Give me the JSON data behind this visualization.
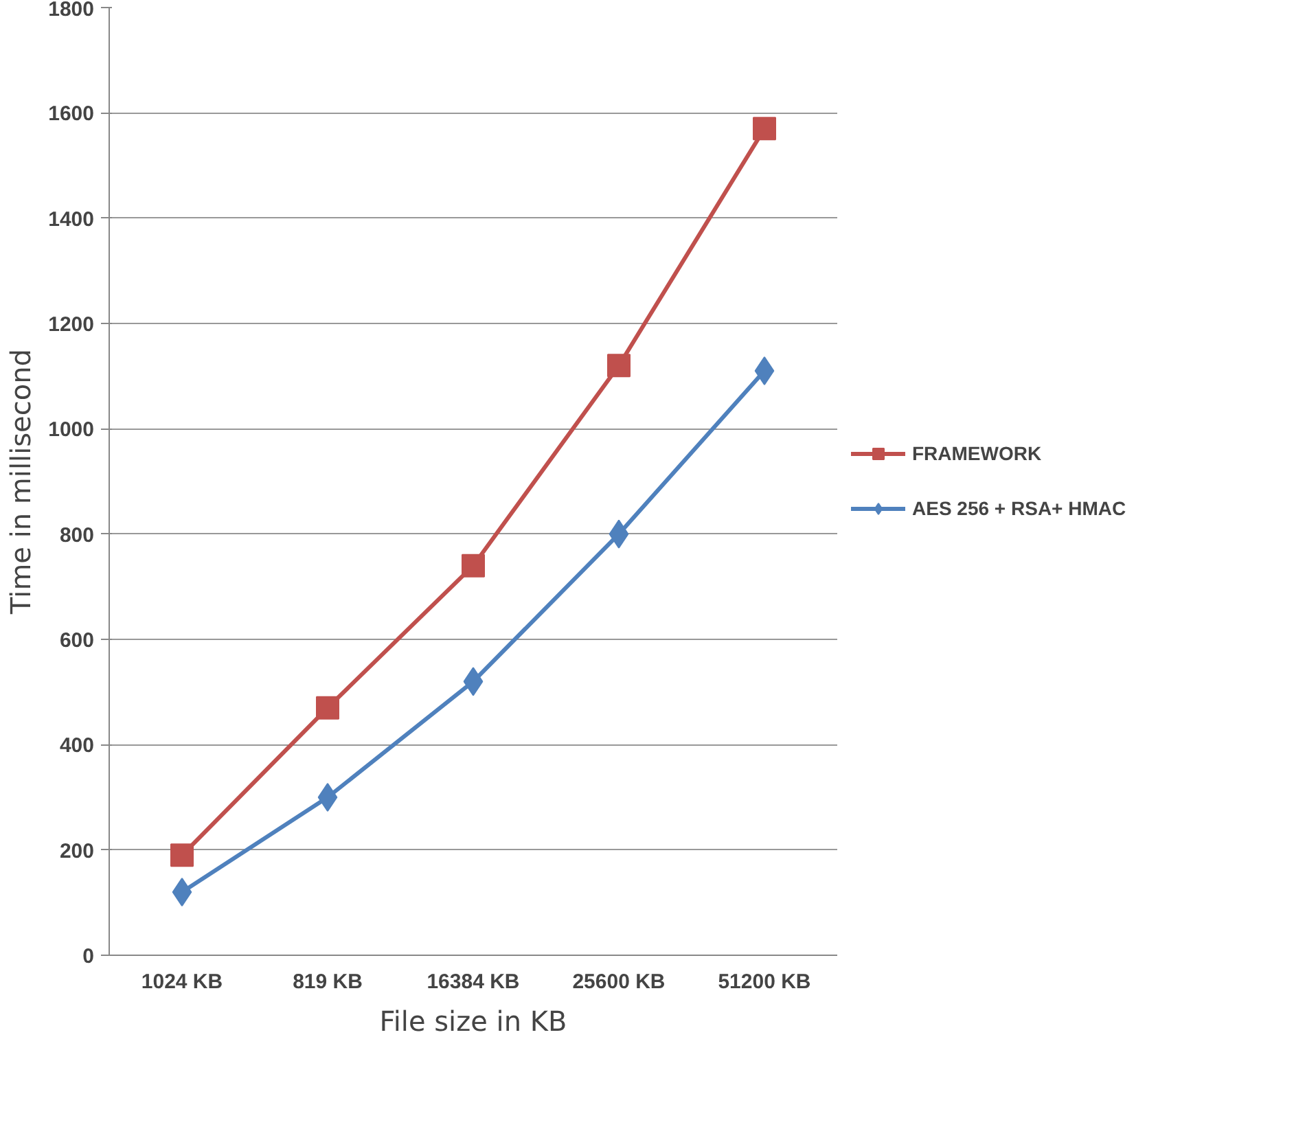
{
  "chart_data": {
    "type": "line",
    "xlabel": "File size in KB",
    "ylabel": "Time in millisecond",
    "categories": [
      "1024 KB",
      "819 KB",
      "16384 KB",
      "25600 KB",
      "51200 KB"
    ],
    "series": [
      {
        "name": "FRAMEWORK",
        "color": "#c0504d",
        "marker": "square",
        "values": [
          190,
          470,
          740,
          1120,
          1570
        ]
      },
      {
        "name": "AES 256 + RSA+ HMAC",
        "color": "#4f81bd",
        "marker": "diamond",
        "values": [
          120,
          300,
          520,
          800,
          1110
        ]
      }
    ],
    "ylim": [
      0,
      1800
    ],
    "yticks": [
      0,
      200,
      400,
      600,
      800,
      1000,
      1200,
      1400,
      1600,
      1800
    ],
    "grid": "y",
    "legend": "right",
    "line_style": "solid"
  }
}
